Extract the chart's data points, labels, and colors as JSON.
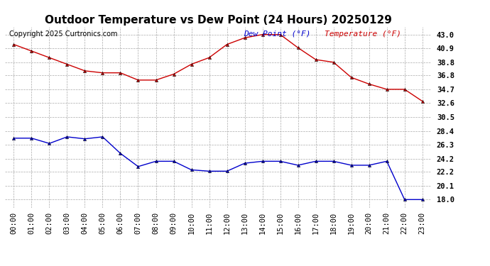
{
  "title": "Outdoor Temperature vs Dew Point (24 Hours) 20250129",
  "copyright": "Copyright 2025 Curtronics.com",
  "legend_dew": "Dew Point (°F)",
  "legend_temp": "Temperature (°F)",
  "hours": [
    "00:00",
    "01:00",
    "02:00",
    "03:00",
    "04:00",
    "05:00",
    "06:00",
    "07:00",
    "08:00",
    "09:00",
    "10:00",
    "11:00",
    "12:00",
    "13:00",
    "14:00",
    "15:00",
    "16:00",
    "17:00",
    "18:00",
    "19:00",
    "20:00",
    "21:00",
    "22:00",
    "23:00"
  ],
  "temperature": [
    41.5,
    40.5,
    39.5,
    38.5,
    37.5,
    37.2,
    37.2,
    36.1,
    36.1,
    37.0,
    38.5,
    39.5,
    41.5,
    42.5,
    43.0,
    43.0,
    41.0,
    39.2,
    38.8,
    36.5,
    35.5,
    34.7,
    34.7,
    32.9
  ],
  "dew_point": [
    27.3,
    27.3,
    26.5,
    27.5,
    27.2,
    27.5,
    25.0,
    23.0,
    23.8,
    23.8,
    22.5,
    22.3,
    22.3,
    23.5,
    23.8,
    23.8,
    23.2,
    23.8,
    23.8,
    23.2,
    23.2,
    23.8,
    18.0,
    18.0
  ],
  "temp_color": "#cc0000",
  "dew_color": "#0000cc",
  "background_color": "#ffffff",
  "grid_color": "#aaaaaa",
  "title_fontsize": 11,
  "copyright_fontsize": 7,
  "legend_fontsize": 8,
  "tick_fontsize": 7.5,
  "ylim_min": 16.8,
  "ylim_max": 44.2,
  "yticks": [
    18.0,
    20.1,
    22.2,
    24.2,
    26.3,
    28.4,
    30.5,
    32.6,
    34.7,
    36.8,
    38.8,
    40.9,
    43.0
  ]
}
